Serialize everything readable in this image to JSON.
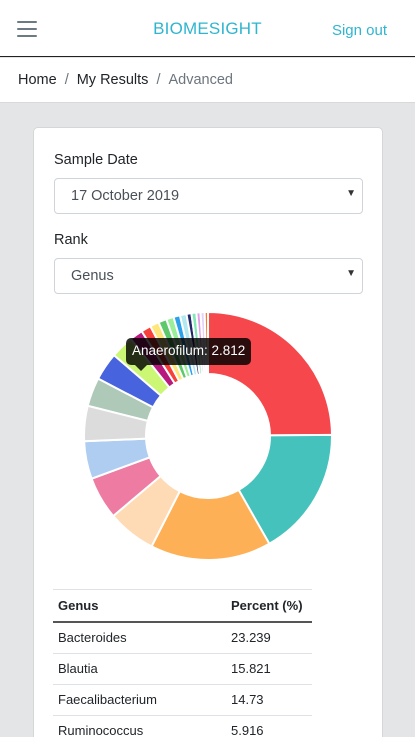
{
  "header": {
    "brand": "BIOMESIGHT",
    "signout_label": "Sign out",
    "menu_icon": "hamburger-icon",
    "brand_color": "#2fb5cf"
  },
  "breadcrumb": {
    "items": [
      "Home",
      "My Results"
    ],
    "active": "Advanced",
    "separator": "/"
  },
  "form": {
    "sample_date_label": "Sample Date",
    "sample_date_value": "17 October 2019",
    "rank_label": "Rank",
    "rank_value": "Genus"
  },
  "tooltip": {
    "text": "Anaerofilum: 2.812"
  },
  "chart_data": {
    "type": "pie",
    "donut": true,
    "slices": [
      {
        "name": "Bacteroides",
        "value": 23.239,
        "color": "#f5474c"
      },
      {
        "name": "Blautia",
        "value": 15.821,
        "color": "#46c2bd"
      },
      {
        "name": "Faecalibacterium",
        "value": 14.73,
        "color": "#feb057"
      },
      {
        "name": "Ruminococcus",
        "value": 5.916,
        "color": "#fedbb4"
      },
      {
        "value": 5.2,
        "color": "#ed7ba2"
      },
      {
        "value": 4.6,
        "color": "#afcdf1"
      },
      {
        "value": 4.3,
        "color": "#dcdcdc"
      },
      {
        "value": 3.5,
        "color": "#aec9b8"
      },
      {
        "value": 3.4,
        "color": "#4763dd"
      },
      {
        "name": "Anaerofilum",
        "value": 2.812,
        "color": "#cbf775"
      },
      {
        "value": 1.6,
        "color": "#b7197c"
      },
      {
        "value": 1.2,
        "color": "#f8403a"
      },
      {
        "value": 1.1,
        "color": "#ffe67a"
      },
      {
        "value": 1.0,
        "color": "#5ec96b"
      },
      {
        "value": 0.9,
        "color": "#9af098"
      },
      {
        "value": 0.8,
        "color": "#2aa1ea"
      },
      {
        "value": 0.8,
        "color": "#b2e9f1"
      },
      {
        "value": 0.6,
        "color": "#22276a"
      },
      {
        "value": 0.6,
        "color": "#82e8b7"
      },
      {
        "value": 0.5,
        "color": "#e49de8"
      },
      {
        "value": 0.5,
        "color": "#e2d4f9"
      },
      {
        "value": 0.4,
        "color": "#f97a2f"
      }
    ]
  },
  "table": {
    "headers": [
      "Genus",
      "Percent (%)"
    ],
    "rows": [
      [
        "Bacteroides",
        "23.239"
      ],
      [
        "Blautia",
        "15.821"
      ],
      [
        "Faecalibacterium",
        "14.73"
      ],
      [
        "Ruminococcus",
        "5.916"
      ]
    ]
  }
}
